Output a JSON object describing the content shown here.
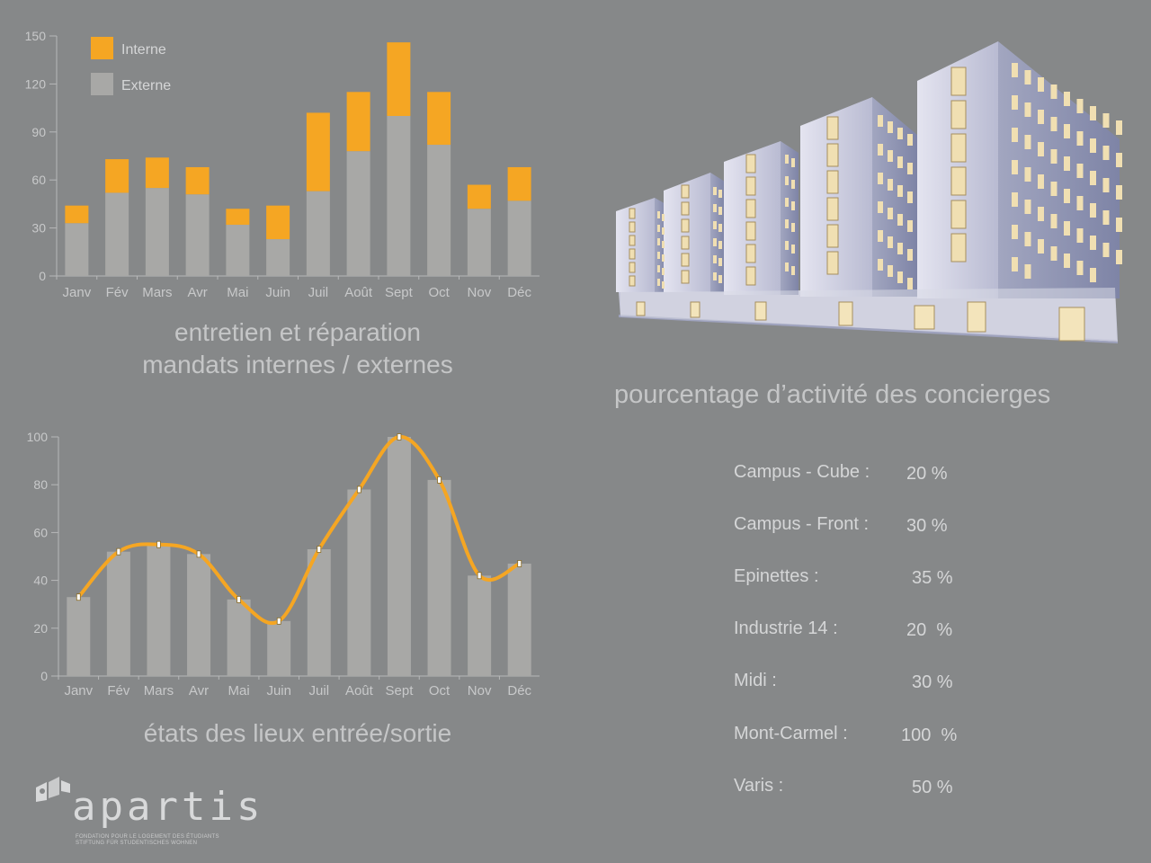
{
  "chart_data": [
    {
      "type": "bar",
      "stacked": true,
      "title": "entretien et réparation\nmandats internes / externes",
      "title_lines": [
        "entretien et réparation",
        "mandats internes / externes"
      ],
      "categories": [
        "Janv",
        "Fév",
        "Mars",
        "Avr",
        "Mai",
        "Juin",
        "Juil",
        "Août",
        "Sept",
        "Oct",
        "Nov",
        "Déc"
      ],
      "series": [
        {
          "name": "Externe",
          "color": "#a8a8a6",
          "values": [
            33,
            52,
            55,
            51,
            32,
            23,
            53,
            78,
            100,
            82,
            42,
            47
          ]
        },
        {
          "name": "Interne",
          "color": "#f5a623",
          "values": [
            11,
            21,
            19,
            17,
            10,
            21,
            49,
            37,
            46,
            33,
            15,
            21
          ]
        }
      ],
      "legend": {
        "position": "top-left",
        "entries": [
          "Interne",
          "Externe"
        ]
      },
      "ylim": [
        0,
        150
      ],
      "yticks": [
        0,
        30,
        60,
        90,
        120,
        150
      ],
      "grid": false
    },
    {
      "type": "bar",
      "title": "états des lieux entrée/sortie",
      "categories": [
        "Janv",
        "Fév",
        "Mars",
        "Avr",
        "Mai",
        "Juin",
        "Juil",
        "Août",
        "Sept",
        "Oct",
        "Nov",
        "Déc"
      ],
      "series": [
        {
          "kind": "bar",
          "color": "#a8a8a6",
          "values": [
            33,
            52,
            55,
            51,
            32,
            23,
            53,
            78,
            100,
            82,
            42,
            47
          ]
        },
        {
          "kind": "line",
          "color": "#f5a623",
          "values": [
            33,
            52,
            55,
            51,
            32,
            23,
            53,
            78,
            100,
            82,
            42,
            47
          ]
        }
      ],
      "ylim": [
        0,
        100
      ],
      "yticks": [
        0,
        20,
        40,
        60,
        80,
        100
      ],
      "grid": false
    }
  ],
  "concierges": {
    "title": "pourcentage d’activité des concierges",
    "items": [
      {
        "label": "Campus - Cube :",
        "value": "20 %"
      },
      {
        "label": "Campus - Front :",
        "value": "30 %"
      },
      {
        "label": "Epinettes :",
        "value": "35 %"
      },
      {
        "label": "Industrie 14 :",
        "value": "20  %"
      },
      {
        "label": "Midi :",
        "value": "30 %"
      },
      {
        "label": "Mont-Carmel :",
        "value": "100  %"
      },
      {
        "label": "Varis :",
        "value": "50 %"
      }
    ]
  },
  "logo": {
    "name": "apartis",
    "tagline_fr": "FONDATION POUR LE LOGEMENT DES ÉTUDIANTS",
    "tagline_de": "STIFTUNG FÜR STUDENTISCHES WOHNEN"
  },
  "colors": {
    "background": "#868889",
    "accent": "#f5a623",
    "bar": "#a8a8a6",
    "text": "#c5c6c7"
  }
}
